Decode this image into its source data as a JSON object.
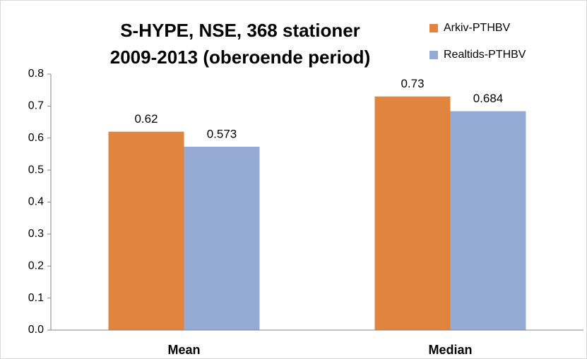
{
  "chart_data": {
    "type": "bar",
    "title": [
      "S-HYPE, NSE, 368 stationer",
      "2009-2013 (oberoende period)"
    ],
    "categories": [
      "Mean",
      "Median"
    ],
    "series": [
      {
        "name": "Arkiv-PTHBV",
        "color": "#e0843e",
        "values": [
          0.62,
          0.73
        ]
      },
      {
        "name": "Realtids-PTHBV",
        "color": "#95abd5",
        "values": [
          0.573,
          0.684
        ]
      }
    ],
    "ylim": [
      0,
      0.8
    ],
    "yticks": [
      {
        "value": 0,
        "label": "0.0"
      },
      0.1,
      0.2,
      0.3,
      0.4,
      0.5,
      0.6,
      0.7,
      0.8
    ],
    "grid": false,
    "legend": "top-right"
  }
}
